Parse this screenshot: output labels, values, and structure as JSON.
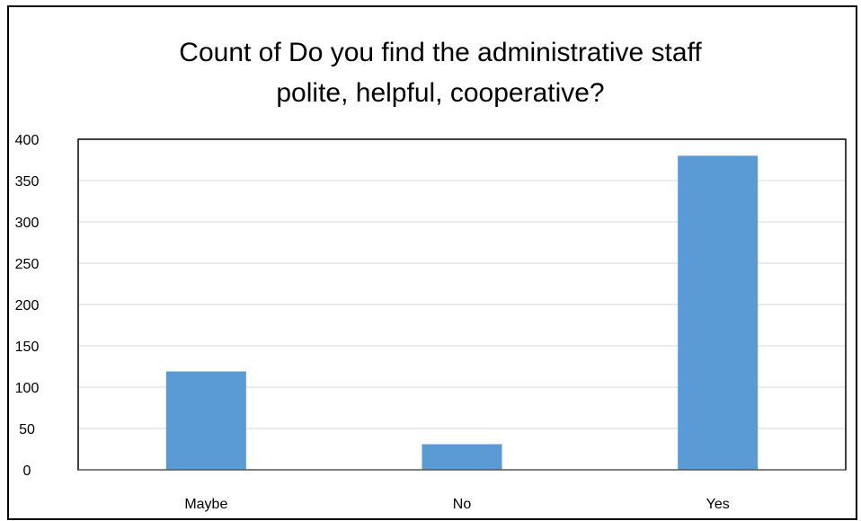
{
  "chart_data": {
    "type": "bar",
    "title_lines": [
      "Count of Do you find the administrative staff",
      "polite, helpful, cooperative?"
    ],
    "categories": [
      "Maybe",
      "No",
      "Yes"
    ],
    "values": [
      119,
      31,
      380
    ],
    "xlabel": "",
    "ylabel": "",
    "ylim": [
      0,
      400
    ],
    "yticks": [
      0,
      50,
      100,
      150,
      200,
      250,
      300,
      350,
      400
    ],
    "grid": true,
    "legend": "none",
    "bar_color": "#5b9bd5",
    "gridline_color": "#d9d9d9"
  }
}
